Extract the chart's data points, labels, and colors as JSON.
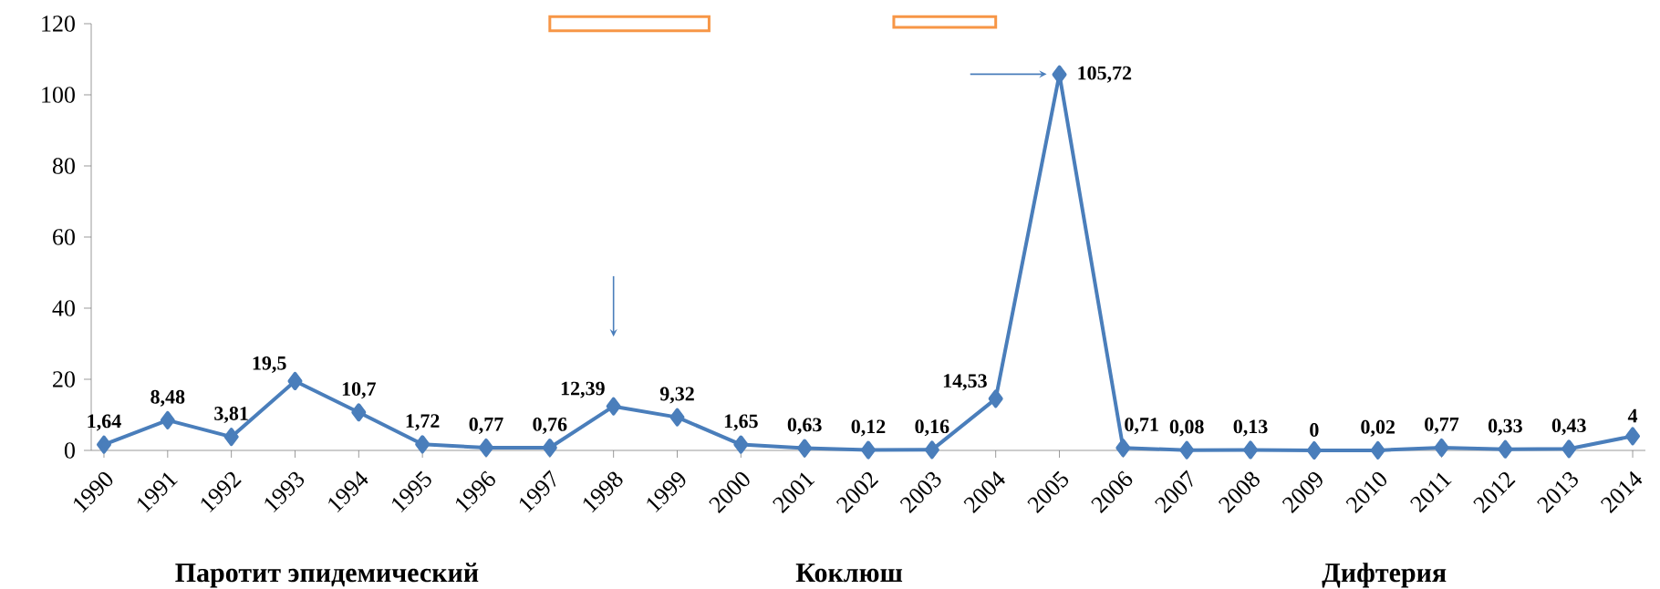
{
  "chart_data": {
    "type": "line",
    "categories": [
      "1990",
      "1991",
      "1992",
      "1993",
      "1994",
      "1995",
      "1996",
      "1997",
      "1998",
      "1999",
      "2000",
      "2001",
      "2002",
      "2003",
      "2004",
      "2005",
      "2006",
      "2007",
      "2008",
      "2009",
      "2010",
      "2011",
      "2012",
      "2013",
      "2014"
    ],
    "values": [
      1.64,
      8.48,
      3.81,
      19.5,
      10.7,
      1.72,
      0.77,
      0.76,
      12.39,
      9.32,
      1.65,
      0.63,
      0.12,
      0.16,
      14.53,
      105.72,
      0.71,
      0.08,
      0.13,
      0,
      0.02,
      0.77,
      0.33,
      0.43,
      4
    ],
    "value_labels": [
      "1,64",
      "8,48",
      "3,81",
      "19,5",
      "10,7",
      "1,72",
      "0,77",
      "0,76",
      "12,39",
      "9,32",
      "1,65",
      "0,63",
      "0,12",
      "0,16",
      "14,53",
      "105,72",
      "0,71",
      "0,08",
      "0,13",
      "0",
      "0,02",
      "0,77",
      "0,33",
      "0,43",
      "4"
    ],
    "color": "#4a7ebb",
    "marker": "diamond",
    "line_style": "solid",
    "ylim": [
      0,
      120
    ],
    "yticks": [
      0,
      20,
      40,
      60,
      80,
      100,
      120
    ],
    "grid": false,
    "annotations": [
      "Паротит эпидемический",
      "Коклюш",
      "Дифтерия"
    ]
  }
}
